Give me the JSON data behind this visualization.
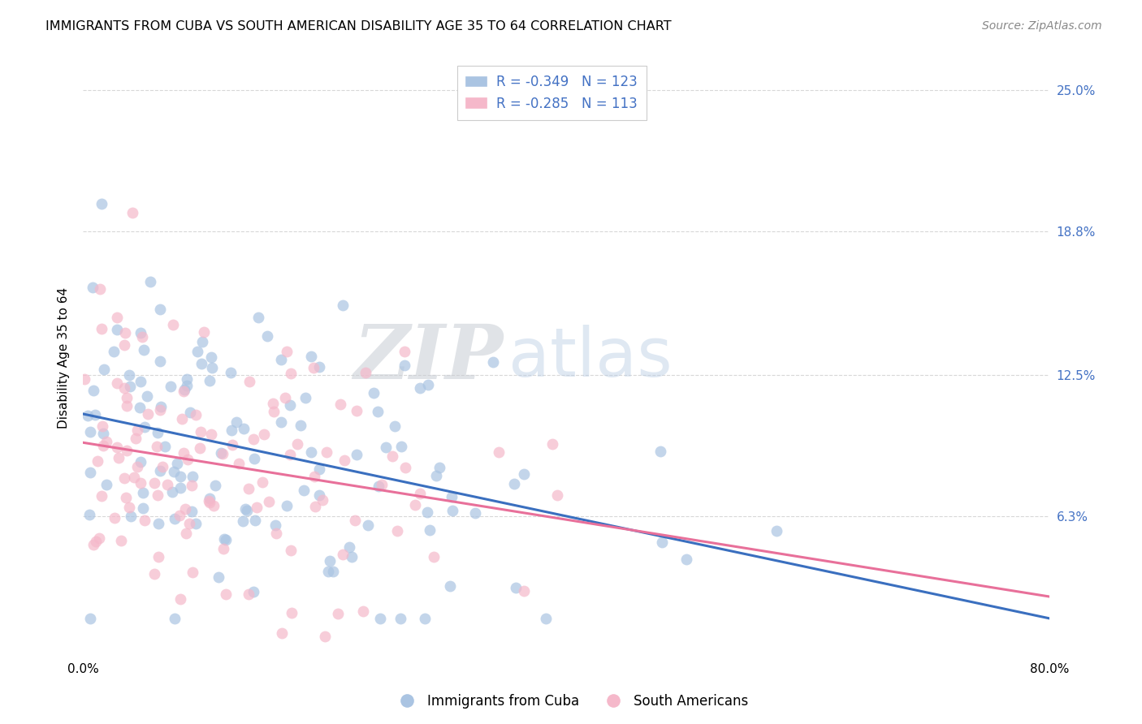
{
  "title": "IMMIGRANTS FROM CUBA VS SOUTH AMERICAN DISABILITY AGE 35 TO 64 CORRELATION CHART",
  "source": "Source: ZipAtlas.com",
  "ylabel": "Disability Age 35 to 64",
  "ytick_labels": [
    "6.3%",
    "12.5%",
    "18.8%",
    "25.0%"
  ],
  "ytick_values": [
    0.063,
    0.125,
    0.188,
    0.25
  ],
  "xlim": [
    0.0,
    0.8
  ],
  "ylim": [
    0.0,
    0.265
  ],
  "xtick_positions": [
    0.0,
    0.2,
    0.4,
    0.6,
    0.8
  ],
  "legend_entry_blue": "R = -0.349   N = 123",
  "legend_entry_pink": "R = -0.285   N = 113",
  "legend_title_blue": "Immigrants from Cuba",
  "legend_title_pink": "South Americans",
  "cuba_color": "#aac4e2",
  "sa_color": "#f5b8ca",
  "cuba_line_color": "#3a6fbf",
  "sa_line_color": "#e8709a",
  "cuba_R": -0.349,
  "cuba_N": 123,
  "sa_R": -0.285,
  "sa_N": 113,
  "background_color": "#ffffff",
  "grid_color": "#d8d8d8",
  "ytick_color": "#4472c4",
  "watermark_zip": "ZIP",
  "watermark_atlas": "atlas",
  "title_fontsize": 11.5,
  "source_fontsize": 10,
  "axis_label_fontsize": 11,
  "tick_label_fontsize": 11,
  "legend_fontsize": 12
}
